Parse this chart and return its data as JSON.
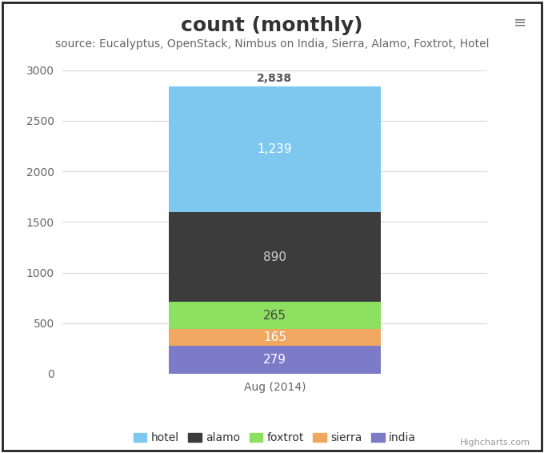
{
  "title": "count (monthly)",
  "subtitle": "source: Eucalyptus, OpenStack, Nimbus on India, Sierra, Alamo, Foxtrot, Hotel",
  "xlabel": "Aug (2014)",
  "background_color": "#ffffff",
  "plot_background_color": "#ffffff",
  "grid_color": "#d8d8d8",
  "ylim": [
    0,
    3000
  ],
  "yticks": [
    0,
    500,
    1000,
    1500,
    2000,
    2500,
    3000
  ],
  "segments": [
    {
      "label": "india",
      "value": 279,
      "color": "#7b7bc8",
      "text_color": "#ffffff"
    },
    {
      "label": "sierra",
      "value": 165,
      "color": "#f0a860",
      "text_color": "#ffffff"
    },
    {
      "label": "foxtrot",
      "value": 265,
      "color": "#8ee060",
      "text_color": "#444444"
    },
    {
      "label": "alamo",
      "value": 890,
      "color": "#3c3c3c",
      "text_color": "#cccccc"
    },
    {
      "label": "hotel",
      "value": 1239,
      "color": "#7ec8f0",
      "text_color": "#ffffff"
    }
  ],
  "total_label": "2,838",
  "total_label_color": "#555555",
  "hamburger_color": "#777777",
  "highcharts_color": "#999999",
  "title_fontsize": 18,
  "subtitle_fontsize": 10,
  "xlabel_fontsize": 10,
  "ytick_fontsize": 10,
  "legend_fontsize": 10,
  "label_inside_fontsize": 11,
  "total_fontsize": 10,
  "legend_order": [
    "hotel",
    "alamo",
    "foxtrot",
    "sierra",
    "india"
  ]
}
